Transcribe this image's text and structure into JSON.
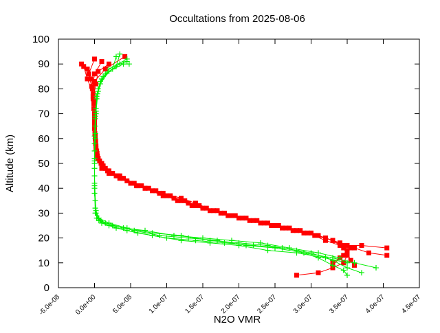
{
  "chart_data": {
    "type": "line",
    "title": "Occultations from 2025-08-06",
    "xlabel": "N2O VMR",
    "ylabel": "Altitude (km)",
    "xlim": [
      -5e-08,
      4.5e-07
    ],
    "ylim": [
      0,
      100
    ],
    "x_ticks": [
      {
        "value": -5e-08,
        "label": "-5.0e-08"
      },
      {
        "value": 0,
        "label": "0.0e+00"
      },
      {
        "value": 5e-08,
        "label": "5.0e-08"
      },
      {
        "value": 1e-07,
        "label": "1.0e-07"
      },
      {
        "value": 1.5e-07,
        "label": "1.5e-07"
      },
      {
        "value": 2e-07,
        "label": "2.0e-07"
      },
      {
        "value": 2.5e-07,
        "label": "2.5e-07"
      },
      {
        "value": 3e-07,
        "label": "3.0e-07"
      },
      {
        "value": 3.5e-07,
        "label": "3.5e-07"
      },
      {
        "value": 4e-07,
        "label": "4.0e-07"
      },
      {
        "value": 4.5e-07,
        "label": "4.5e-07"
      }
    ],
    "y_ticks": [
      {
        "value": 0,
        "label": "0"
      },
      {
        "value": 10,
        "label": "10"
      },
      {
        "value": 20,
        "label": "20"
      },
      {
        "value": 30,
        "label": "30"
      },
      {
        "value": 40,
        "label": "40"
      },
      {
        "value": 50,
        "label": "50"
      },
      {
        "value": 60,
        "label": "60"
      },
      {
        "value": 70,
        "label": "70"
      },
      {
        "value": 80,
        "label": "80"
      },
      {
        "value": 90,
        "label": "90"
      },
      {
        "value": 100,
        "label": "100"
      }
    ],
    "grid": false,
    "series": [
      {
        "color": "#ff0000",
        "marker": "square",
        "profiles": [
          [
            [
              2.8e-07,
              5
            ],
            [
              3.1e-07,
              6
            ],
            [
              3.3e-07,
              8
            ],
            [
              3.45e-07,
              10
            ],
            [
              3.5e-07,
              13
            ],
            [
              3.45e-07,
              16
            ],
            [
              3.3e-07,
              19
            ],
            [
              3.1e-07,
              21
            ],
            [
              2.8e-07,
              23
            ],
            [
              2.5e-07,
              25
            ],
            [
              2.2e-07,
              27
            ],
            [
              1.9e-07,
              29
            ],
            [
              1.6e-07,
              31
            ],
            [
              1.35e-07,
              33
            ],
            [
              1.1e-07,
              36
            ],
            [
              8.5e-08,
              39
            ],
            [
              6e-08,
              41
            ],
            [
              4e-08,
              44
            ],
            [
              2.5e-08,
              46
            ],
            [
              1.2e-08,
              49
            ],
            [
              5e-09,
              52
            ],
            [
              2e-09,
              56
            ],
            [
              5e-10,
              62
            ],
            [
              0,
              70
            ],
            [
              -2e-09,
              78
            ],
            [
              -1e-08,
              84
            ],
            [
              -1.5e-08,
              89
            ]
          ],
          [
            [
              3.3e-07,
              9
            ],
            [
              3.4e-07,
              12
            ],
            [
              3.5e-07,
              15
            ],
            [
              3.4e-07,
              18
            ],
            [
              3.2e-07,
              20
            ],
            [
              3e-07,
              22
            ],
            [
              2.7e-07,
              24
            ],
            [
              2.4e-07,
              26
            ],
            [
              2.1e-07,
              28
            ],
            [
              1.8e-07,
              30
            ],
            [
              1.5e-07,
              32
            ],
            [
              1.25e-07,
              35
            ],
            [
              1e-07,
              37
            ],
            [
              7.5e-08,
              40
            ],
            [
              5.5e-08,
              42
            ],
            [
              3.5e-08,
              45
            ],
            [
              2e-08,
              47
            ],
            [
              1e-08,
              50
            ],
            [
              4e-09,
              53
            ],
            [
              1.5e-09,
              58
            ],
            [
              0,
              66
            ],
            [
              -1e-09,
              74
            ],
            [
              -3e-09,
              80
            ],
            [
              0,
              86
            ],
            [
              1e-08,
              91
            ]
          ],
          [
            [
              4.05e-07,
              13
            ],
            [
              3.8e-07,
              14
            ],
            [
              3.6e-07,
              16
            ],
            [
              3.4e-07,
              18
            ],
            [
              3.2e-07,
              20
            ],
            [
              2.9e-07,
              22
            ],
            [
              2.6e-07,
              24
            ],
            [
              2.3e-07,
              26
            ],
            [
              2e-07,
              28
            ],
            [
              1.7e-07,
              31
            ],
            [
              1.4e-07,
              33
            ],
            [
              1.15e-07,
              35
            ],
            [
              9e-08,
              38
            ],
            [
              6.5e-08,
              41
            ],
            [
              4.5e-08,
              43
            ],
            [
              3e-08,
              45
            ],
            [
              1.5e-08,
              48
            ],
            [
              7e-09,
              51
            ],
            [
              3e-09,
              55
            ],
            [
              1e-09,
              60
            ],
            [
              0,
              68
            ],
            [
              -2e-09,
              76
            ],
            [
              2e-09,
              82
            ],
            [
              5e-09,
              87
            ],
            [
              2e-08,
              90
            ]
          ],
          [
            [
              4.05e-07,
              16
            ],
            [
              3.7e-07,
              17
            ],
            [
              3.5e-07,
              17
            ],
            [
              3.3e-07,
              19
            ],
            [
              3.1e-07,
              21
            ],
            [
              2.85e-07,
              23
            ],
            [
              2.55e-07,
              25
            ],
            [
              2.25e-07,
              27
            ],
            [
              1.95e-07,
              29
            ],
            [
              1.65e-07,
              31
            ],
            [
              1.4e-07,
              34
            ],
            [
              1.2e-07,
              36
            ],
            [
              9.5e-08,
              38
            ],
            [
              7e-08,
              40
            ],
            [
              5e-08,
              42
            ],
            [
              3.5e-08,
              44
            ],
            [
              2e-08,
              46
            ],
            [
              1e-08,
              48
            ],
            [
              5e-09,
              52
            ],
            [
              2e-09,
              57
            ],
            [
              0,
              64
            ],
            [
              -1e-09,
              72
            ],
            [
              -4e-09,
              81
            ],
            [
              -8e-09,
              86
            ],
            [
              0,
              92
            ]
          ],
          [
            [
              3.6e-07,
              9
            ],
            [
              3.55e-07,
              11
            ],
            [
              3.5e-07,
              14
            ],
            [
              3.45e-07,
              17
            ],
            [
              3.3e-07,
              19
            ],
            [
              3.05e-07,
              21
            ],
            [
              2.75e-07,
              23
            ],
            [
              2.45e-07,
              25
            ],
            [
              2.15e-07,
              27
            ],
            [
              1.85e-07,
              29
            ],
            [
              1.55e-07,
              32
            ],
            [
              1.3e-07,
              34
            ],
            [
              1.05e-07,
              37
            ],
            [
              8e-08,
              39
            ],
            [
              5.8e-08,
              41
            ],
            [
              3.8e-08,
              44
            ],
            [
              2.2e-08,
              46
            ],
            [
              1.1e-08,
              49
            ],
            [
              4.5e-09,
              52
            ],
            [
              1.5e-09,
              59
            ],
            [
              0,
              67
            ],
            [
              -1e-09,
              75
            ],
            [
              0,
              83
            ],
            [
              1.5e-08,
              88
            ],
            [
              4.2e-08,
              93
            ]
          ],
          [
            [
              3.3e-07,
              10
            ],
            [
              3.45e-07,
              13
            ],
            [
              3.55e-07,
              16
            ],
            [
              3.4e-07,
              17
            ],
            [
              3.2e-07,
              19
            ],
            [
              2.95e-07,
              22
            ],
            [
              2.65e-07,
              24
            ],
            [
              2.35e-07,
              26
            ],
            [
              2.05e-07,
              28
            ],
            [
              1.75e-07,
              30
            ],
            [
              1.45e-07,
              33
            ],
            [
              1.2e-07,
              35
            ],
            [
              9.5e-08,
              37
            ],
            [
              7e-08,
              40
            ],
            [
              5e-08,
              42
            ],
            [
              3.2e-08,
              45
            ],
            [
              1.8e-08,
              47
            ],
            [
              9e-09,
              50
            ],
            [
              3.5e-09,
              54
            ],
            [
              1e-09,
              61
            ],
            [
              0,
              69
            ],
            [
              -2e-09,
              77
            ],
            [
              -5e-09,
              84
            ],
            [
              -1e-08,
              88
            ],
            [
              -1.8e-08,
              90
            ]
          ]
        ]
      },
      {
        "color": "#00ee00",
        "marker": "plus",
        "profiles": [
          [
            [
              3.7e-07,
              6
            ],
            [
              3.5e-07,
              8
            ],
            [
              3.3e-07,
              11
            ],
            [
              3e-07,
              14
            ],
            [
              2.6e-07,
              16
            ],
            [
              2.2e-07,
              17
            ],
            [
              1.8e-07,
              18
            ],
            [
              1.4e-07,
              19
            ],
            [
              1e-07,
              20
            ],
            [
              6e-08,
              22
            ],
            [
              3e-08,
              24
            ],
            [
              1e-08,
              26
            ],
            [
              3e-09,
              28
            ],
            [
              1e-09,
              35
            ],
            [
              0,
              45
            ],
            [
              0,
              55
            ],
            [
              1e-09,
              65
            ],
            [
              2e-09,
              72
            ],
            [
              5e-09,
              80
            ],
            [
              1.5e-08,
              86
            ],
            [
              3.5e-08,
              90
            ],
            [
              4.5e-08,
              91
            ]
          ],
          [
            [
              3.9e-07,
              8
            ],
            [
              3.6e-07,
              10
            ],
            [
              3.3e-07,
              12
            ],
            [
              2.9e-07,
              14
            ],
            [
              2.5e-07,
              16
            ],
            [
              2.1e-07,
              17
            ],
            [
              1.7e-07,
              19
            ],
            [
              1.3e-07,
              20
            ],
            [
              9e-08,
              21
            ],
            [
              5.5e-08,
              23
            ],
            [
              2.5e-08,
              25
            ],
            [
              8e-09,
              27
            ],
            [
              2e-09,
              30
            ],
            [
              0,
              38
            ],
            [
              0,
              48
            ],
            [
              0,
              58
            ],
            [
              1e-09,
              68
            ],
            [
              3e-09,
              76
            ],
            [
              8e-09,
              82
            ],
            [
              2e-08,
              87
            ],
            [
              4e-08,
              90
            ],
            [
              4.8e-08,
              90
            ]
          ],
          [
            [
              3.5e-07,
              10
            ],
            [
              3.2e-07,
              12
            ],
            [
              2.8e-07,
              14
            ],
            [
              2.4e-07,
              15
            ],
            [
              2e-07,
              17
            ],
            [
              1.6e-07,
              18
            ],
            [
              1.2e-07,
              19
            ],
            [
              8e-08,
              21
            ],
            [
              4.5e-08,
              23
            ],
            [
              2e-08,
              25
            ],
            [
              6e-09,
              27
            ],
            [
              1e-09,
              30
            ],
            [
              0,
              40
            ],
            [
              0,
              50
            ],
            [
              1e-09,
              60
            ],
            [
              2e-09,
              70
            ],
            [
              4e-09,
              78
            ],
            [
              1e-08,
              84
            ],
            [
              2.5e-08,
              88
            ],
            [
              3e-08,
              93
            ]
          ],
          [
            [
              3.4e-07,
              12
            ],
            [
              3.1e-07,
              14
            ],
            [
              2.7e-07,
              16
            ],
            [
              2.3e-07,
              18
            ],
            [
              1.9e-07,
              19
            ],
            [
              1.5e-07,
              20
            ],
            [
              1.1e-07,
              21
            ],
            [
              7e-08,
              23
            ],
            [
              4e-08,
              24
            ],
            [
              1.5e-08,
              26
            ],
            [
              5e-09,
              28
            ],
            [
              1e-09,
              32
            ],
            [
              0,
              42
            ],
            [
              0,
              52
            ],
            [
              1e-09,
              62
            ],
            [
              2e-09,
              71
            ],
            [
              5e-09,
              79
            ],
            [
              1.2e-08,
              85
            ],
            [
              3e-08,
              89
            ],
            [
              3.5e-08,
              94
            ]
          ],
          [
            [
              3.5e-07,
              5
            ],
            [
              3.45e-07,
              7
            ],
            [
              3.3e-07,
              9
            ],
            [
              3.1e-07,
              12
            ],
            [
              2.8e-07,
              15
            ],
            [
              2.4e-07,
              17
            ],
            [
              2e-07,
              18
            ],
            [
              1.6e-07,
              19
            ],
            [
              1.2e-07,
              21
            ],
            [
              8e-08,
              22
            ],
            [
              4.5e-08,
              24
            ],
            [
              2e-08,
              26
            ],
            [
              6e-09,
              28
            ],
            [
              2e-09,
              31
            ],
            [
              0,
              41
            ],
            [
              0,
              51
            ],
            [
              0,
              61
            ],
            [
              1e-09,
              69
            ],
            [
              3e-09,
              77
            ],
            [
              8e-09,
              83
            ],
            [
              2e-08,
              88
            ],
            [
              4.5e-08,
              92
            ]
          ]
        ]
      }
    ]
  }
}
